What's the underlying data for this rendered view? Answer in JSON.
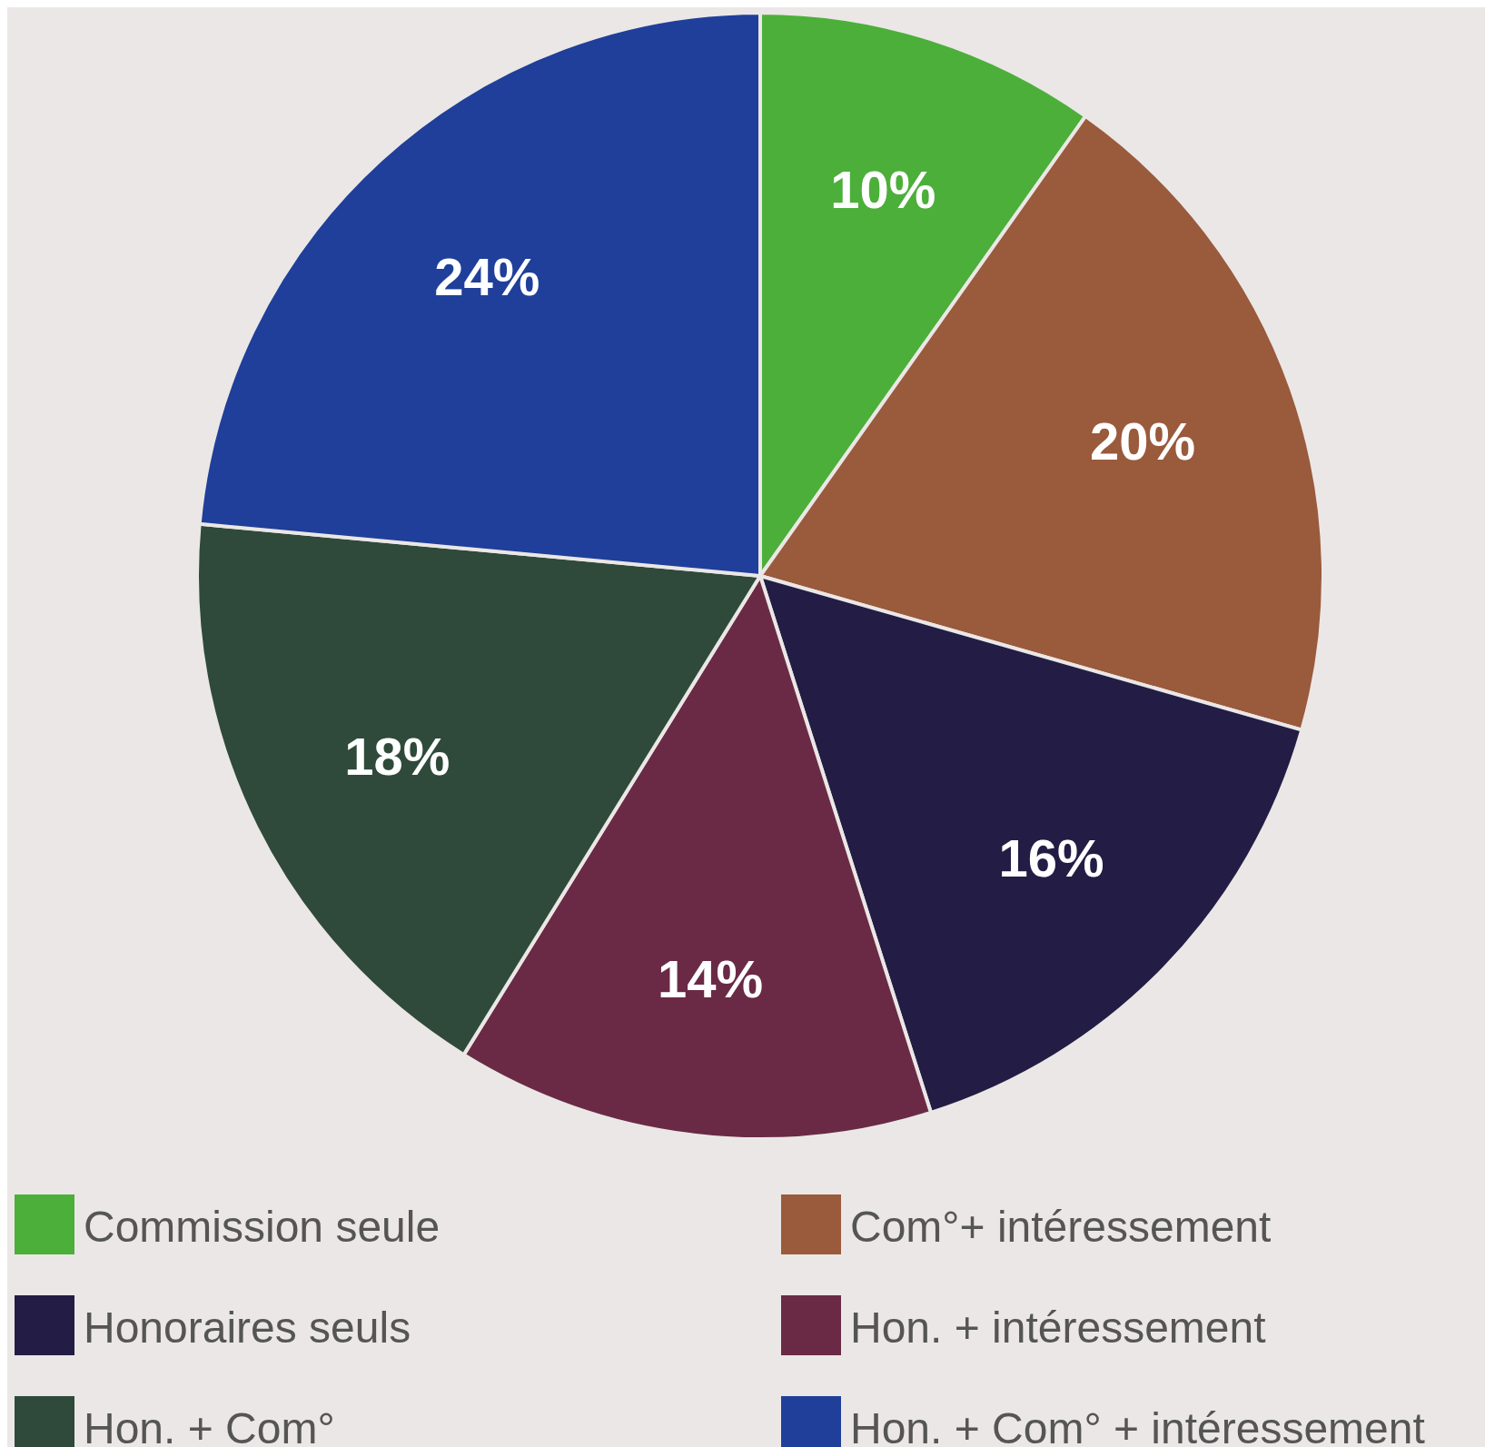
{
  "chart_data": {
    "type": "pie",
    "categories": [
      "Commission seule",
      "Com°+ intéressement",
      "Honoraires seuls",
      "Hon. + intéressement",
      "Hon. + Com°",
      "Hon. + Com° + intéressement"
    ],
    "values": [
      10,
      20,
      16,
      14,
      18,
      24
    ],
    "value_labels": [
      "10%",
      "20%",
      "16%",
      "14%",
      "18%",
      "24%"
    ],
    "colors": [
      "#4caf3a",
      "#9a5a3c",
      "#231d45",
      "#6a2a45",
      "#2f4a3a",
      "#1f3f9a"
    ],
    "legend": "bottom"
  }
}
